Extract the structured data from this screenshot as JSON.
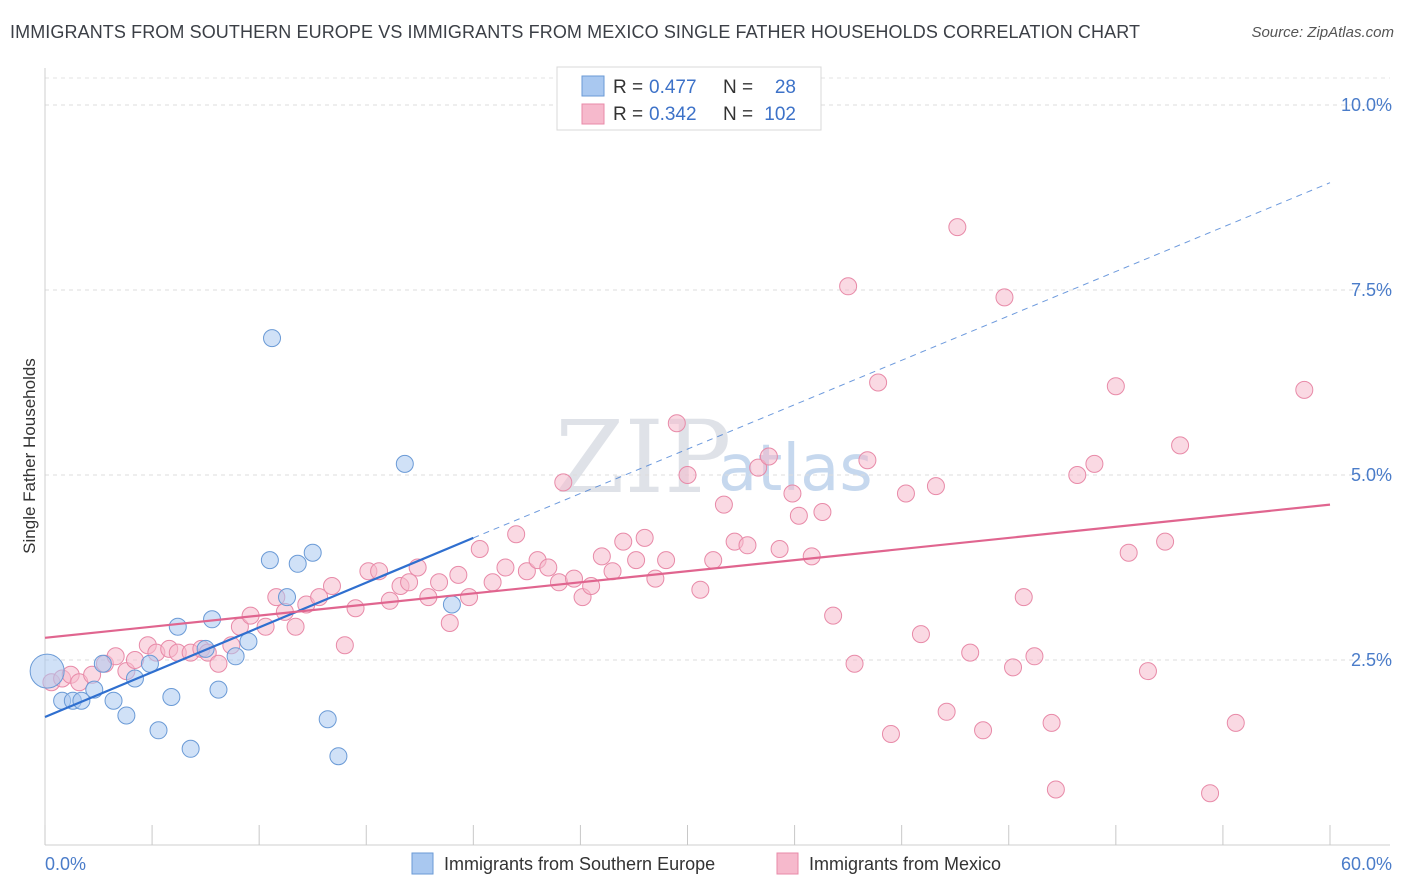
{
  "header": {
    "title": "IMMIGRANTS FROM SOUTHERN EUROPE VS IMMIGRANTS FROM MEXICO SINGLE FATHER HOUSEHOLDS CORRELATION CHART",
    "source": "Source: ZipAtlas.com"
  },
  "watermark": {
    "zip": "ZIP",
    "atlas": "atlas"
  },
  "legend": {
    "rows": [
      {
        "r_label": "R = ",
        "r_value": "0.477",
        "n_label": "N = ",
        "n_value": "28"
      },
      {
        "r_label": "R = ",
        "r_value": "0.342",
        "n_label": "N = ",
        "n_value": "102"
      }
    ]
  },
  "colors": {
    "series1_fill": "#a9c8f0",
    "series1_stroke": "#6a9ad6",
    "series1_line": "#2f6fcf",
    "series2_fill": "#f6b9cc",
    "series2_stroke": "#e88aa8",
    "series2_line": "#e0658f"
  },
  "chart_data": {
    "type": "scatter",
    "title": "IMMIGRANTS FROM SOUTHERN EUROPE VS IMMIGRANTS FROM MEXICO SINGLE FATHER HOUSEHOLDS CORRELATION CHART",
    "xlabel": "",
    "ylabel": "Single Father Households",
    "xlim": [
      0,
      60
    ],
    "ylim": [
      0,
      10.5
    ],
    "x_tick_labels": [
      "0.0%",
      "60.0%"
    ],
    "y_ticks": [
      2.5,
      5.0,
      7.5,
      10.0
    ],
    "y_tick_labels": [
      "2.5%",
      "5.0%",
      "7.5%",
      "10.0%"
    ],
    "grid": true,
    "legend_position": "top-center",
    "series": [
      {
        "name": "Immigrants from Southern Europe",
        "points": [
          [
            0.1,
            2.35
          ],
          [
            0.8,
            1.95
          ],
          [
            1.3,
            1.95
          ],
          [
            1.7,
            1.95
          ],
          [
            2.3,
            2.1
          ],
          [
            2.7,
            2.45
          ],
          [
            3.2,
            1.95
          ],
          [
            3.8,
            1.75
          ],
          [
            4.2,
            2.25
          ],
          [
            4.9,
            2.45
          ],
          [
            5.3,
            1.55
          ],
          [
            5.9,
            2.0
          ],
          [
            6.2,
            2.95
          ],
          [
            6.8,
            1.3
          ],
          [
            7.5,
            2.65
          ],
          [
            7.8,
            3.05
          ],
          [
            8.1,
            2.1
          ],
          [
            8.9,
            2.55
          ],
          [
            9.5,
            2.75
          ],
          [
            10.5,
            3.85
          ],
          [
            10.6,
            6.85
          ],
          [
            11.3,
            3.35
          ],
          [
            11.8,
            3.8
          ],
          [
            12.5,
            3.95
          ],
          [
            13.2,
            1.7
          ],
          [
            13.7,
            1.2
          ],
          [
            16.8,
            5.15
          ],
          [
            19.0,
            3.25
          ]
        ],
        "trend": {
          "x": [
            0,
            20
          ],
          "y": [
            1.73,
            4.15
          ],
          "dashed_extension": {
            "x": [
              20,
              60
            ],
            "y": [
              4.15,
              8.95
            ]
          }
        }
      },
      {
        "name": "Immigrants from Mexico",
        "points": [
          [
            0.3,
            2.2
          ],
          [
            0.8,
            2.25
          ],
          [
            1.2,
            2.3
          ],
          [
            1.6,
            2.2
          ],
          [
            2.2,
            2.3
          ],
          [
            2.8,
            2.45
          ],
          [
            3.3,
            2.55
          ],
          [
            3.8,
            2.35
          ],
          [
            4.2,
            2.5
          ],
          [
            4.8,
            2.7
          ],
          [
            5.2,
            2.6
          ],
          [
            5.8,
            2.65
          ],
          [
            6.2,
            2.6
          ],
          [
            6.8,
            2.6
          ],
          [
            7.3,
            2.65
          ],
          [
            7.6,
            2.6
          ],
          [
            8.1,
            2.45
          ],
          [
            8.7,
            2.7
          ],
          [
            9.1,
            2.95
          ],
          [
            9.6,
            3.1
          ],
          [
            10.3,
            2.95
          ],
          [
            10.8,
            3.35
          ],
          [
            11.2,
            3.15
          ],
          [
            11.7,
            2.95
          ],
          [
            12.2,
            3.25
          ],
          [
            12.8,
            3.35
          ],
          [
            13.4,
            3.5
          ],
          [
            14.0,
            2.7
          ],
          [
            14.5,
            3.2
          ],
          [
            15.1,
            3.7
          ],
          [
            15.6,
            3.7
          ],
          [
            16.1,
            3.3
          ],
          [
            16.6,
            3.5
          ],
          [
            17.0,
            3.55
          ],
          [
            17.4,
            3.75
          ],
          [
            17.9,
            3.35
          ],
          [
            18.4,
            3.55
          ],
          [
            18.9,
            3.0
          ],
          [
            19.3,
            3.65
          ],
          [
            19.8,
            3.35
          ],
          [
            20.3,
            4.0
          ],
          [
            20.9,
            3.55
          ],
          [
            21.5,
            3.75
          ],
          [
            22.0,
            4.2
          ],
          [
            22.5,
            3.7
          ],
          [
            23.0,
            3.85
          ],
          [
            23.5,
            3.75
          ],
          [
            24.0,
            3.55
          ],
          [
            24.2,
            4.9
          ],
          [
            24.7,
            3.6
          ],
          [
            25.1,
            3.35
          ],
          [
            25.5,
            3.5
          ],
          [
            26.0,
            3.9
          ],
          [
            26.5,
            3.7
          ],
          [
            27.0,
            4.1
          ],
          [
            27.6,
            3.85
          ],
          [
            28.0,
            4.15
          ],
          [
            28.5,
            3.6
          ],
          [
            29.0,
            3.85
          ],
          [
            29.5,
            5.7
          ],
          [
            30.0,
            5.0
          ],
          [
            30.6,
            3.45
          ],
          [
            31.2,
            3.85
          ],
          [
            31.7,
            4.6
          ],
          [
            32.2,
            4.1
          ],
          [
            32.8,
            4.05
          ],
          [
            33.3,
            5.1
          ],
          [
            33.8,
            5.25
          ],
          [
            34.3,
            4.0
          ],
          [
            34.9,
            4.75
          ],
          [
            35.2,
            4.45
          ],
          [
            35.8,
            3.9
          ],
          [
            36.3,
            4.5
          ],
          [
            36.8,
            3.1
          ],
          [
            37.5,
            7.55
          ],
          [
            37.8,
            2.45
          ],
          [
            38.4,
            5.2
          ],
          [
            38.9,
            6.25
          ],
          [
            39.5,
            1.5
          ],
          [
            40.2,
            4.75
          ],
          [
            40.9,
            2.85
          ],
          [
            41.6,
            4.85
          ],
          [
            42.1,
            1.8
          ],
          [
            42.6,
            8.35
          ],
          [
            43.2,
            2.6
          ],
          [
            43.8,
            1.55
          ],
          [
            44.8,
            7.4
          ],
          [
            45.2,
            2.4
          ],
          [
            45.7,
            3.35
          ],
          [
            46.2,
            2.55
          ],
          [
            47.0,
            1.65
          ],
          [
            47.2,
            0.75
          ],
          [
            48.2,
            5.0
          ],
          [
            49.0,
            5.15
          ],
          [
            50.0,
            6.2
          ],
          [
            50.6,
            3.95
          ],
          [
            51.5,
            2.35
          ],
          [
            52.3,
            4.1
          ],
          [
            53.0,
            5.4
          ],
          [
            54.4,
            0.7
          ],
          [
            55.6,
            1.65
          ],
          [
            58.8,
            6.15
          ]
        ],
        "trend": {
          "x": [
            0,
            60
          ],
          "y": [
            2.8,
            4.6
          ]
        }
      }
    ]
  },
  "bottom_legend": {
    "items": [
      {
        "label": "Immigrants from Southern Europe"
      },
      {
        "label": "Immigrants from Mexico"
      }
    ]
  }
}
